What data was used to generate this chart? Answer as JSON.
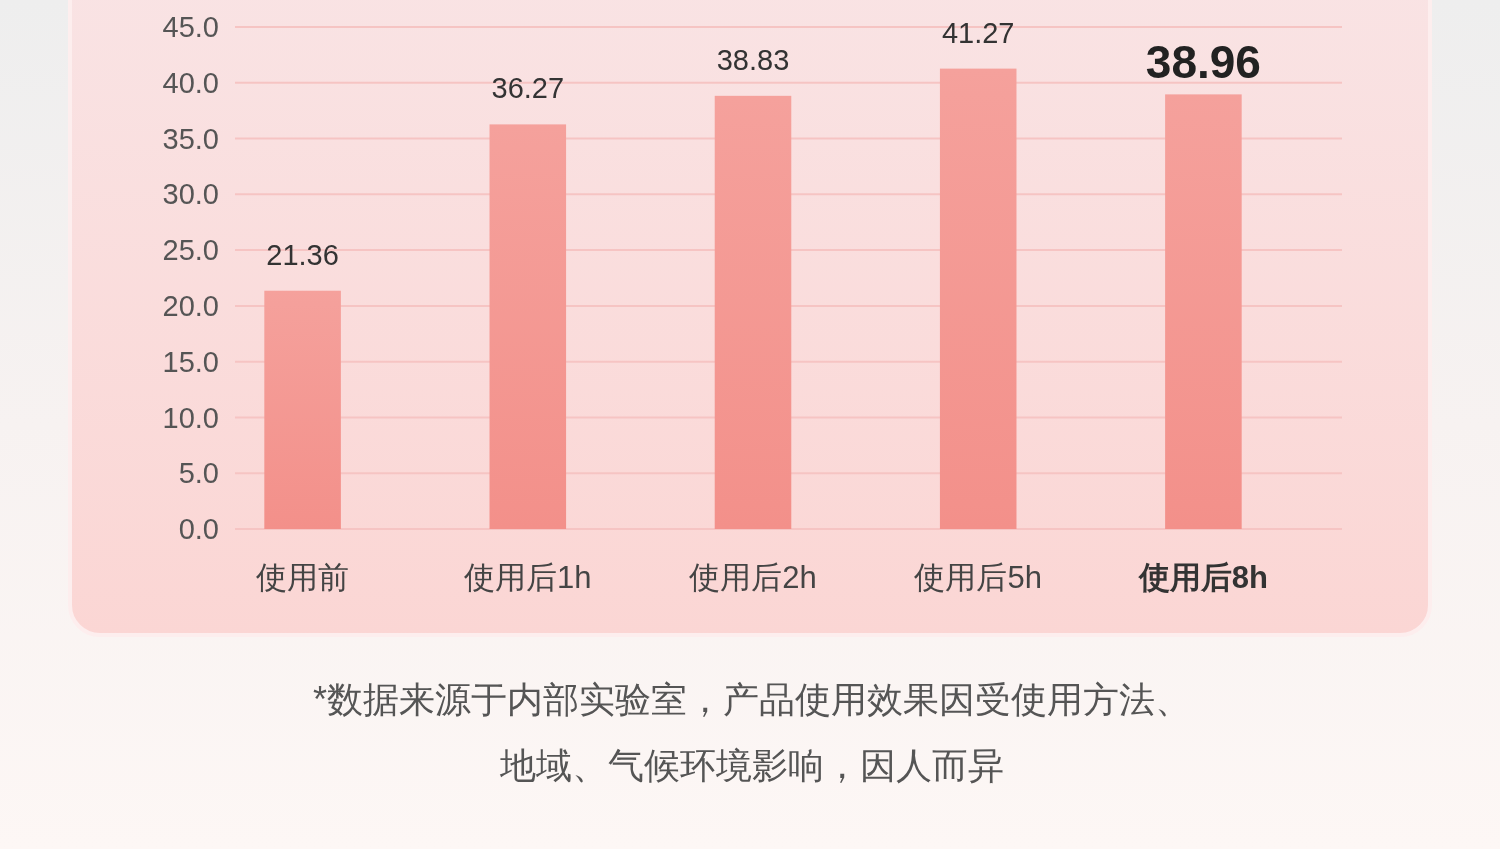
{
  "chart_data": {
    "type": "bar",
    "categories": [
      "使用前",
      "使用后1h",
      "使用后2h",
      "使用后5h",
      "使用后8h"
    ],
    "values": [
      21.36,
      36.27,
      38.83,
      41.27,
      38.96
    ],
    "color": "#f3908a",
    "ylim": [
      0,
      45
    ],
    "yticks": [
      {
        "value": 0,
        "label": "0.0"
      },
      {
        "value": 5,
        "label": "5.0"
      },
      {
        "value": 10,
        "label": "10.0"
      },
      {
        "value": 15,
        "label": "15.0"
      },
      {
        "value": 20,
        "label": "20.0"
      },
      {
        "value": 25,
        "label": "25.0"
      },
      {
        "value": 30,
        "label": "30.0"
      },
      {
        "value": 35,
        "label": "35.0"
      },
      {
        "value": 40,
        "label": "40.0"
      },
      {
        "value": 45,
        "label": "45.0"
      }
    ],
    "grid": "y",
    "data_labels": true,
    "annotations": [
      "*数据来源于内部实验室，产品使用效果因受使用方法、地域、气候环境影响，因人而异"
    ]
  }
}
